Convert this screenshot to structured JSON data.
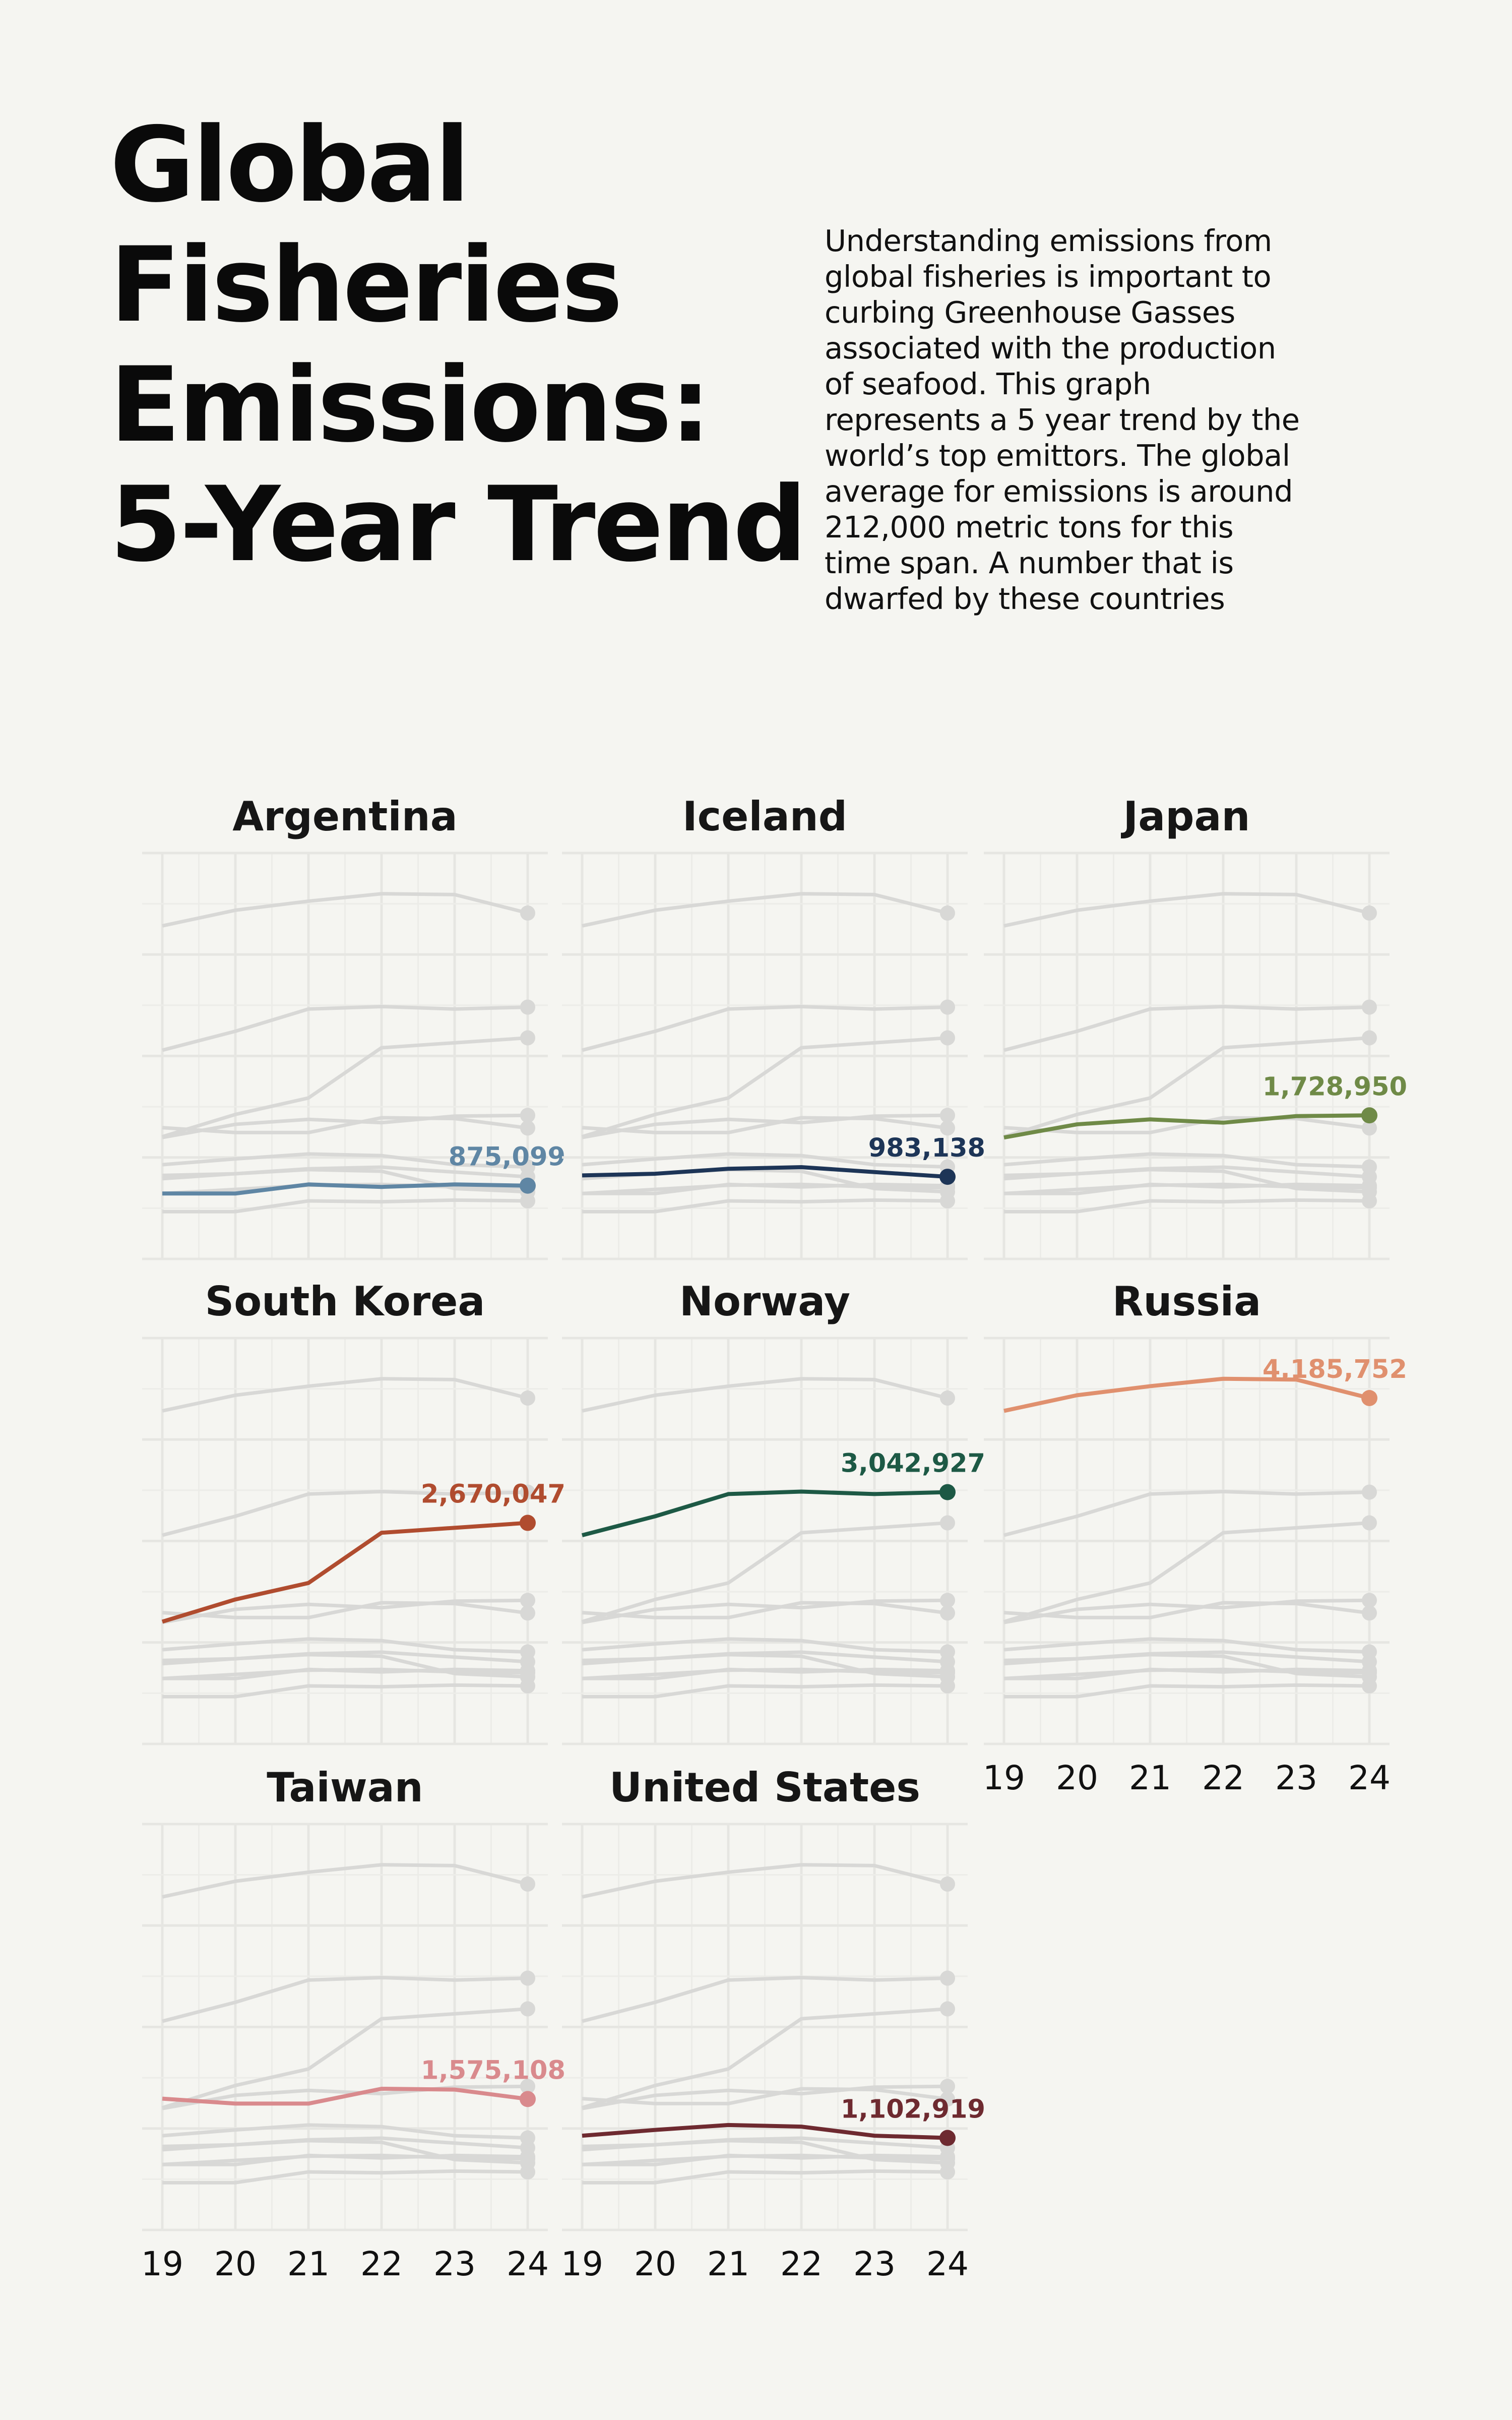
{
  "header": {
    "title_lines": [
      "Global",
      "Fisheries",
      "Emissions:",
      "5-Year Trend"
    ],
    "subtitle_lines": [
      "Understanding emissions from",
      "global fisheries is important to",
      "curbing Greenhouse Gasses",
      "associated with the production",
      "of seafood. This graph",
      "represents a 5 year trend by the",
      "world’s top emittors. The global",
      "average for emissions is around",
      "212,000 metric tons for this",
      "time span. A number that is",
      "dwarfed by these countries"
    ]
  },
  "chart_data": {
    "type": "line",
    "layout": "small-multiples",
    "x": [
      2019,
      2020,
      2021,
      2022,
      2023,
      2024
    ],
    "x_tick_labels": [
      "19",
      "20",
      "21",
      "22",
      "23",
      "24"
    ],
    "ylim": [
      200000,
      4700000
    ],
    "grid": true,
    "background_series_color": "#d8d8d6",
    "series": [
      {
        "name": "Argentina",
        "color": "#5f86a4",
        "label": "875,099",
        "values": [
          780000,
          780000,
          890000,
          860000,
          890000,
          875099
        ]
      },
      {
        "name": "Iceland",
        "color": "#1d3557",
        "label": "983,138",
        "values": [
          1000000,
          1020000,
          1080000,
          1100000,
          1040000,
          983138
        ]
      },
      {
        "name": "Japan",
        "color": "#6f8a47",
        "label": "1,728,950",
        "values": [
          1460000,
          1620000,
          1680000,
          1640000,
          1720000,
          1728950
        ]
      },
      {
        "name": "South Korea",
        "color": "#b04c2f",
        "label": "2,670,047",
        "values": [
          1470000,
          1740000,
          1940000,
          2550000,
          2610000,
          2670047
        ]
      },
      {
        "name": "Norway",
        "color": "#1d5945",
        "label": "3,042,927",
        "values": [
          2520000,
          2750000,
          3020000,
          3050000,
          3020000,
          3042927
        ]
      },
      {
        "name": "Russia",
        "color": "#e0906e",
        "label": "4,185,752",
        "values": [
          4030000,
          4220000,
          4330000,
          4420000,
          4410000,
          4185752
        ]
      },
      {
        "name": "Taiwan",
        "color": "#d98a8d",
        "label": "1,575,108",
        "values": [
          1580000,
          1520000,
          1520000,
          1700000,
          1690000,
          1575108
        ]
      },
      {
        "name": "United States",
        "color": "#6e2a30",
        "label": "1,102,919",
        "values": [
          1130000,
          1200000,
          1260000,
          1240000,
          1130000,
          1102919
        ]
      }
    ],
    "context_series": [
      {
        "values": [
          560000,
          560000,
          690000,
          680000,
          700000,
          690000
        ]
      },
      {
        "values": [
          960000,
          1020000,
          1070000,
          1050000,
          840000,
          800000
        ]
      },
      {
        "values": [
          780000,
          830000,
          880000,
          890000,
          860000,
          850000
        ]
      }
    ]
  }
}
